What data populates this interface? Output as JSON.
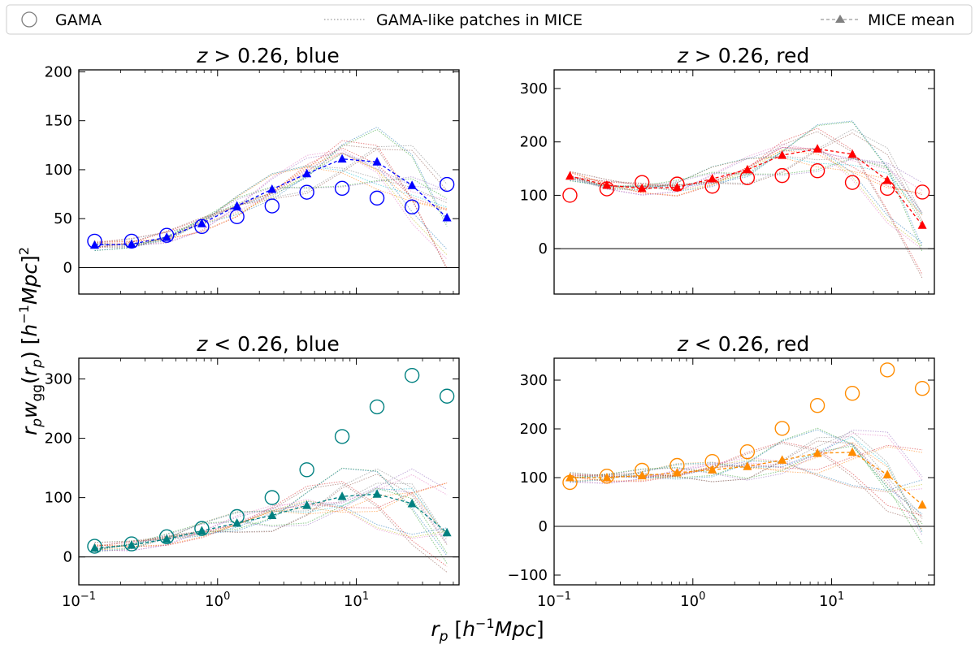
{
  "legend": {
    "gama": "GAMA",
    "patches": "GAMA-like patches in MICE",
    "mean": "MICE mean"
  },
  "xlabel": "r_p [h^-1 Mpc]",
  "ylabel": "r_p w_gg(r_p) [h^-1 Mpc]^2",
  "chart_data": [
    {
      "type": "line",
      "title": "z > 0.26, blue",
      "color": "#0000ff",
      "x": [
        0.13,
        0.24,
        0.43,
        0.77,
        1.38,
        2.47,
        4.4,
        7.9,
        14.1,
        25.2,
        45.0
      ],
      "xscale": "log",
      "xlim": [
        0.1,
        55
      ],
      "ylim": [
        -27,
        202
      ],
      "yticks": [
        0,
        50,
        100,
        150,
        200
      ],
      "series": [
        {
          "name": "GAMA",
          "values": [
            27,
            27,
            33,
            42,
            52,
            63,
            77,
            81,
            71,
            62,
            85
          ]
        },
        {
          "name": "MICE mean",
          "values": [
            23,
            24,
            31,
            45,
            63,
            80,
            96,
            111,
            108,
            84,
            51
          ]
        }
      ]
    },
    {
      "type": "line",
      "title": "z > 0.26, red",
      "color": "#ff0000",
      "x": [
        0.13,
        0.24,
        0.43,
        0.77,
        1.38,
        2.47,
        4.4,
        7.9,
        14.1,
        25.2,
        45.0
      ],
      "xscale": "log",
      "xlim": [
        0.1,
        55
      ],
      "ylim": [
        -85,
        335
      ],
      "yticks": [
        0,
        100,
        200,
        300
      ],
      "series": [
        {
          "name": "GAMA",
          "values": [
            100,
            112,
            124,
            121,
            117,
            133,
            137,
            146,
            124,
            113,
            106
          ]
        },
        {
          "name": "MICE mean",
          "values": [
            136,
            119,
            113,
            115,
            131,
            148,
            175,
            187,
            177,
            128,
            44
          ]
        }
      ]
    },
    {
      "type": "line",
      "title": "z < 0.26, blue",
      "color": "#008080",
      "x": [
        0.13,
        0.24,
        0.43,
        0.77,
        1.38,
        2.47,
        4.4,
        7.9,
        14.1,
        25.2,
        45.0
      ],
      "xscale": "log",
      "xlim": [
        0.1,
        55
      ],
      "ylim": [
        -47,
        335
      ],
      "yticks": [
        0,
        100,
        200,
        300
      ],
      "series": [
        {
          "name": "GAMA",
          "values": [
            18,
            22,
            34,
            48,
            68,
            100,
            147,
            203,
            253,
            306,
            271
          ]
        },
        {
          "name": "MICE mean",
          "values": [
            15,
            20,
            30,
            44,
            57,
            70,
            87,
            102,
            106,
            90,
            41
          ]
        }
      ]
    },
    {
      "type": "line",
      "title": "z < 0.26, red",
      "color": "#ff8c00",
      "x": [
        0.13,
        0.24,
        0.43,
        0.77,
        1.38,
        2.47,
        4.4,
        7.9,
        14.1,
        25.2,
        45.0
      ],
      "xscale": "log",
      "xlim": [
        0.1,
        55
      ],
      "ylim": [
        -120,
        345
      ],
      "yticks": [
        -100,
        0,
        100,
        200,
        300
      ],
      "series": [
        {
          "name": "GAMA",
          "values": [
            90,
            103,
            115,
            125,
            133,
            153,
            201,
            248,
            273,
            321,
            283
          ]
        },
        {
          "name": "MICE mean",
          "values": [
            100,
            100,
            104,
            110,
            116,
            123,
            136,
            150,
            152,
            106,
            44
          ]
        }
      ]
    }
  ]
}
